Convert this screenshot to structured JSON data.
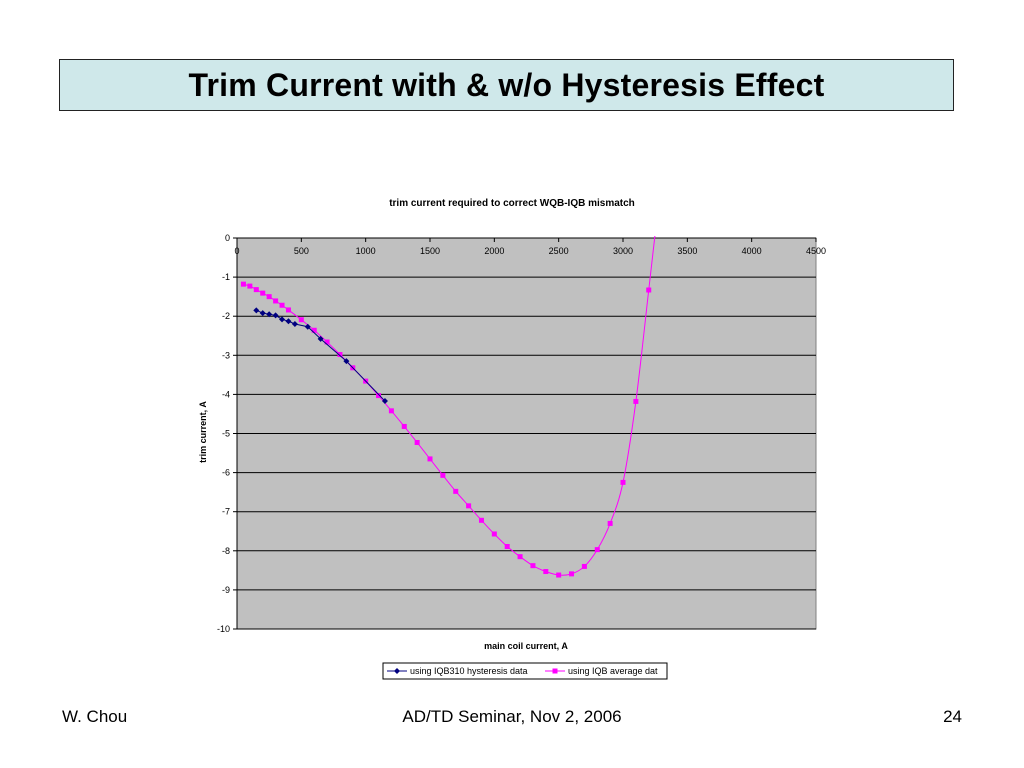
{
  "slide": {
    "title": "Trim Current with & w/o Hysteresis Effect",
    "footer_left": "W. Chou",
    "footer_center": "AD/TD Seminar, Nov 2, 2006",
    "footer_right": "24"
  },
  "chart_data": {
    "type": "line",
    "title": "trim current required to correct WQB-IQB mismatch",
    "xlabel": "main coil current, A",
    "ylabel": "trim current, A",
    "xlim": [
      0,
      4500
    ],
    "ylim": [
      -10,
      0
    ],
    "x_ticks": [
      0,
      500,
      1000,
      1500,
      2000,
      2500,
      3000,
      3500,
      4000,
      4500
    ],
    "y_ticks": [
      0,
      -1,
      -2,
      -3,
      -4,
      -5,
      -6,
      -7,
      -8,
      -9,
      -10
    ],
    "grid": "horizontal",
    "legend_position": "bottom",
    "plot_background": "#c0c0c0",
    "series": [
      {
        "name": "using IQB310 hysteresis data",
        "color": "#000080",
        "marker": "diamond",
        "x": [
          150,
          200,
          250,
          300,
          350,
          400,
          450,
          550,
          650,
          850,
          1150
        ],
        "y": [
          -1.85,
          -1.92,
          -1.95,
          -1.98,
          -2.08,
          -2.13,
          -2.2,
          -2.27,
          -2.58,
          -3.15,
          -4.17
        ]
      },
      {
        "name": "using IQB average dat",
        "color": "#ff00ff",
        "marker": "square",
        "x": [
          50,
          100,
          150,
          200,
          250,
          300,
          350,
          400,
          500,
          600,
          700,
          800,
          900,
          1000,
          1100,
          1200,
          1300,
          1400,
          1500,
          1600,
          1700,
          1800,
          1900,
          2000,
          2100,
          2200,
          2300,
          2400,
          2500,
          2600,
          2700,
          2800,
          2900,
          3000,
          3100,
          3200
        ],
        "y": [
          -1.18,
          -1.23,
          -1.32,
          -1.41,
          -1.5,
          -1.61,
          -1.72,
          -1.84,
          -2.09,
          -2.36,
          -2.66,
          -2.98,
          -3.32,
          -3.66,
          -4.03,
          -4.42,
          -4.82,
          -5.23,
          -5.65,
          -6.07,
          -6.48,
          -6.85,
          -7.22,
          -7.57,
          -7.89,
          -8.15,
          -8.38,
          -8.53,
          -8.62,
          -8.59,
          -8.4,
          -7.97,
          -7.3,
          -6.25,
          -4.18,
          -1.33
        ]
      }
    ]
  }
}
